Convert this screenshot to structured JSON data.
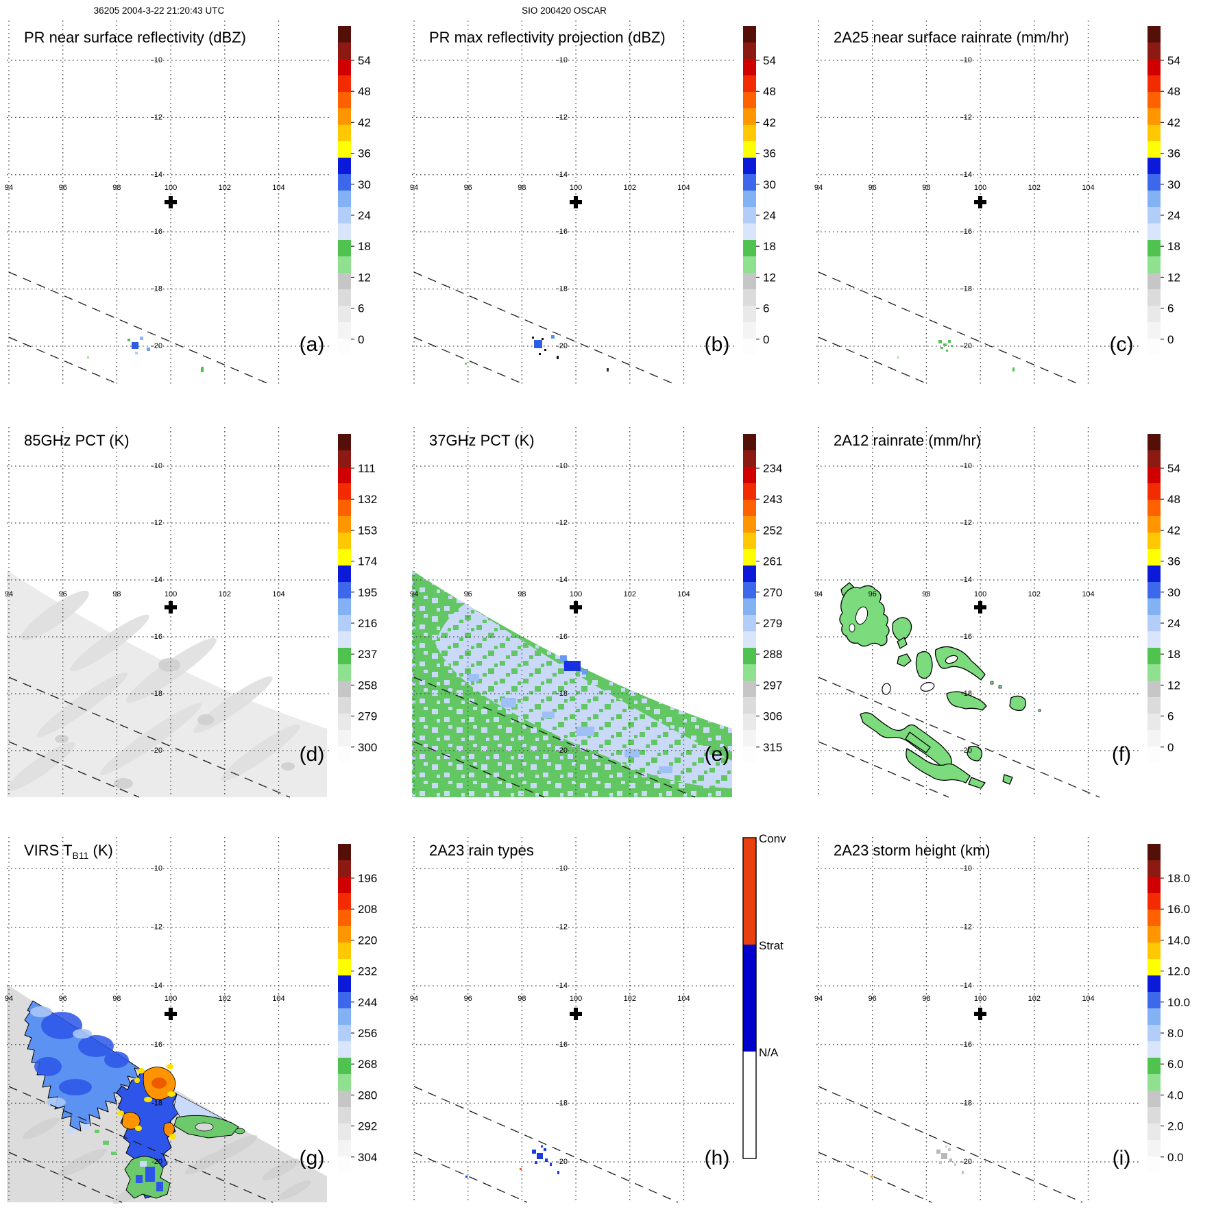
{
  "figure": {
    "header_left": "36205 2004-3-22 21:20:43 UTC",
    "header_center": "SIO 200420 OSCAR"
  },
  "axes": {
    "lon_labels": [
      "94",
      "96",
      "98",
      "100",
      "102",
      "104"
    ],
    "lat_labels": [
      "-10",
      "-12",
      "-14",
      "-16",
      "-18",
      "-20"
    ]
  },
  "colorbar_colors": [
    "#FDFDFD",
    "#F4F4F4",
    "#E9E9E9",
    "#DBDBDB",
    "#C6C6C6",
    "#8FE08F",
    "#4FC24F",
    "#D8E5FB",
    "#B2CEF8",
    "#82B2F4",
    "#3E68EC",
    "#0A1AD8",
    "#FFFF00",
    "#FFC800",
    "#FF9600",
    "#FF6000",
    "#F22C00",
    "#D00000",
    "#8C1A12",
    "#541008"
  ],
  "rain_type_bar": {
    "labels": [
      "Conv",
      "Strat",
      "N/A"
    ],
    "colors": [
      "#E8400E",
      "#0000CC",
      "#FFFFFF"
    ]
  },
  "panels": [
    {
      "id": "a",
      "corner": "(a)",
      "title": "PR near surface reflectivity (dBZ)",
      "cb": "scale",
      "cb_ticks": [
        "54",
        "48",
        "42",
        "36",
        "30",
        "24",
        "18",
        "12",
        "6",
        "0"
      ]
    },
    {
      "id": "b",
      "corner": "(b)",
      "title": "PR max reflectivity projection (dBZ)",
      "cb": "scale",
      "cb_ticks": [
        "54",
        "48",
        "42",
        "36",
        "30",
        "24",
        "18",
        "12",
        "6",
        "0"
      ]
    },
    {
      "id": "c",
      "corner": "(c)",
      "title": "2A25 near surface rainrate (mm/hr)",
      "cb": "scale",
      "cb_ticks": [
        "54",
        "48",
        "42",
        "36",
        "30",
        "24",
        "18",
        "12",
        "6",
        "0"
      ]
    },
    {
      "id": "d",
      "corner": "(d)",
      "title": "85GHz PCT (K)",
      "cb": "scale",
      "cb_ticks": [
        "111",
        "132",
        "153",
        "174",
        "195",
        "216",
        "237",
        "258",
        "279",
        "300"
      ]
    },
    {
      "id": "e",
      "corner": "(e)",
      "title": "37GHz PCT (K)",
      "cb": "scale",
      "cb_ticks": [
        "234",
        "243",
        "252",
        "261",
        "270",
        "279",
        "288",
        "297",
        "306",
        "315"
      ]
    },
    {
      "id": "f",
      "corner": "(f)",
      "title": "2A12 rainrate (mm/hr)",
      "cb": "scale",
      "cb_ticks": [
        "54",
        "48",
        "42",
        "36",
        "30",
        "24",
        "18",
        "12",
        "6",
        "0"
      ]
    },
    {
      "id": "g",
      "corner": "(g)",
      "title_pre": "VIRS T",
      "title_sub": "B11",
      "title_post": " (K)",
      "cb": "scale",
      "cb_ticks": [
        "196",
        "208",
        "220",
        "232",
        "244",
        "256",
        "268",
        "280",
        "292",
        "304"
      ]
    },
    {
      "id": "h",
      "corner": "(h)",
      "title": "2A23 rain types",
      "cb": "raintype"
    },
    {
      "id": "i",
      "corner": "(i)",
      "title": "2A23 storm height (km)",
      "cb": "scale",
      "cb_ticks": [
        "18.0",
        "16.0",
        "14.0",
        "12.0",
        "10.0",
        "8.0",
        "6.0",
        "4.0",
        "2.0",
        "0.0"
      ]
    }
  ],
  "chart_data": [
    {
      "panel": "a",
      "type": "map",
      "title": "PR near surface reflectivity (dBZ)",
      "units": "dBZ",
      "colorbar_ticks": [
        54,
        48,
        42,
        36,
        30,
        24,
        18,
        12,
        6,
        0
      ],
      "lon_ticks": [
        94,
        96,
        98,
        100,
        102,
        104
      ],
      "lat_ticks": [
        -10,
        -12,
        -14,
        -16,
        -18,
        -20
      ],
      "cross_marker": {
        "lon": 100,
        "lat": -15
      },
      "content": "mostly empty map; small 15-33 dBZ echo speckle cluster near 97.3E 19.9S; two dashed PR-swath-edge lines in lower left"
    },
    {
      "panel": "b",
      "type": "map",
      "title": "PR max reflectivity projection (dBZ)",
      "units": "dBZ",
      "colorbar_ticks": [
        54,
        48,
        42,
        36,
        30,
        24,
        18,
        12,
        6,
        0
      ],
      "cross_marker": {
        "lon": 100,
        "lat": -15
      },
      "content": "small 27-33 dBZ blue echo patch with black specks near 97.3E 19.9S"
    },
    {
      "panel": "c",
      "type": "map",
      "title": "2A25 near surface rainrate (mm/hr)",
      "units": "mm/hr",
      "colorbar_ticks": [
        54,
        48,
        42,
        36,
        30,
        24,
        18,
        12,
        6,
        0
      ],
      "cross_marker": {
        "lon": 100,
        "lat": -15
      },
      "content": "sparse green 1-6 mm/hr rain speckles near 97.3E 19.9S"
    },
    {
      "panel": "d",
      "type": "map",
      "title": "85GHz PCT (K)",
      "units": "K",
      "colorbar_ticks": [
        111,
        132,
        153,
        174,
        195,
        216,
        237,
        258,
        279,
        300
      ],
      "cross_marker": {
        "lon": 100,
        "lat": -15
      },
      "content": "TMI swath fills triangle below diagonal edge from 94E 13.6S to lower right; nearly uniform 290-300 K pale gray"
    },
    {
      "panel": "e",
      "type": "map",
      "title": "37GHz PCT (K)",
      "units": "K",
      "colorbar_ticks": [
        234,
        243,
        252,
        261,
        270,
        279,
        288,
        297,
        306,
        315
      ],
      "cross_marker": {
        "lon": 100,
        "lat": -15
      },
      "content": "swath mosaic of ~285-291 K green and ~279-283 K pale blue pixels; ~270 K dark blue spot at swath edge near 100E 17.2S"
    },
    {
      "panel": "f",
      "type": "map",
      "title": "2A12 rainrate (mm/hr)",
      "units": "mm/hr",
      "colorbar_ticks": [
        54,
        48,
        42,
        36,
        30,
        24,
        18,
        12,
        6,
        0
      ],
      "cross_marker": {
        "lon": 100,
        "lat": -15
      },
      "content": "black-outlined light green 1-6 mm/hr rain areas in NW-SE band from about 95E 14.5S to 98.7E 20.7S, plus small ellipse contours"
    },
    {
      "panel": "g",
      "type": "map",
      "title": "VIRS TB11 (K)",
      "units": "K",
      "colorbar_ticks": [
        196,
        208,
        220,
        232,
        244,
        256,
        268,
        280,
        292,
        304
      ],
      "cross_marker": {
        "lon": 100,
        "lat": -15
      },
      "content": "gray 285-300 K clear scene; large 244-256 K blue cloud shield in upper left of swath; 220-232 K orange/yellow cold cores near 98.5-100E 17-18S; ~268 K green areas east and south; black temperature contours"
    },
    {
      "panel": "h",
      "type": "map",
      "title": "2A23 rain types",
      "categories": [
        "Conv",
        "Strat",
        "N/A"
      ],
      "cross_marker": {
        "lon": 100,
        "lat": -15
      },
      "content": "blue stratiform pixel cluster near 97.4E 19.9S; single orange convective pixel near 96.9E 20.3S"
    },
    {
      "panel": "i",
      "type": "map",
      "title": "2A23 storm height (km)",
      "units": "km",
      "colorbar_ticks": [
        18,
        16,
        14,
        12,
        10,
        8,
        6,
        4,
        2,
        0
      ],
      "cross_marker": {
        "lon": 100,
        "lat": -15
      },
      "content": "small 2-4 km gray storm-height pixel cluster near 97.4E 19.9S"
    }
  ]
}
